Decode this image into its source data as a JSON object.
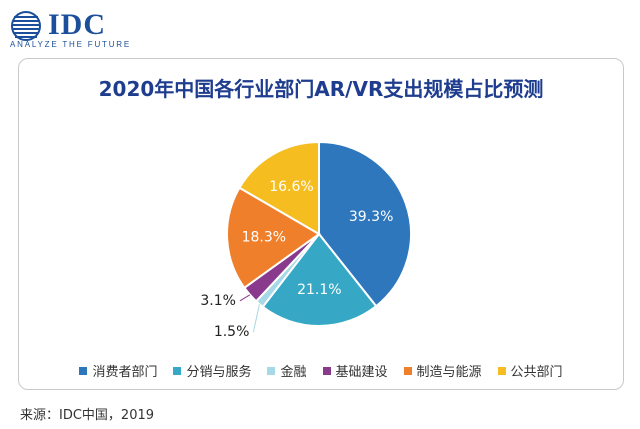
{
  "logo": {
    "brand": "IDC",
    "tagline": "ANALYZE THE FUTURE",
    "brand_color": "#1b4f9b"
  },
  "source_note": "来源：IDC中国，2019",
  "chart_data": {
    "type": "pie",
    "title": "2020年中国各行业部门AR/VR支出规模占比预测",
    "slices": [
      {
        "label": "消费者部门",
        "value": 39.3,
        "display": "39.3%",
        "color": "#2e77bd"
      },
      {
        "label": "分销与服务",
        "value": 21.1,
        "display": "21.1%",
        "color": "#36a8c6"
      },
      {
        "label": "金融",
        "value": 1.5,
        "display": "1.5%",
        "color": "#a7d8e5"
      },
      {
        "label": "基础建设",
        "value": 3.1,
        "display": "3.1%",
        "color": "#8a3a8c"
      },
      {
        "label": "制造与能源",
        "value": 18.3,
        "display": "18.3%",
        "color": "#ef7f2a"
      },
      {
        "label": "公共部门",
        "value": 16.6,
        "display": "16.6%",
        "color": "#f5bd1f"
      }
    ],
    "start": "12 o'clock",
    "direction": "clockwise",
    "legend_position": "bottom",
    "title_color": "#1f3d8f"
  }
}
